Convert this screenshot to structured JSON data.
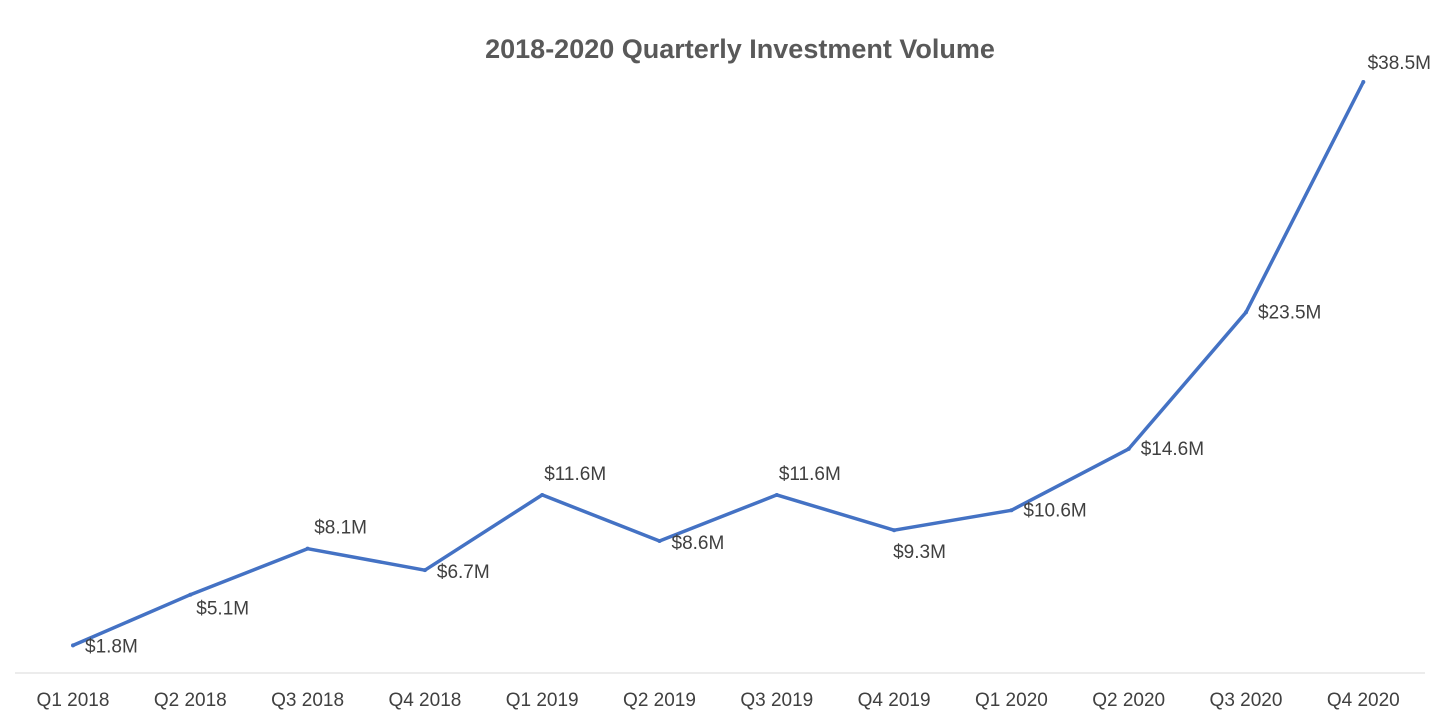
{
  "colors": {
    "series_line": "#4472C4",
    "axis_line": "#D9D9D9",
    "title_text": "#595959",
    "label_text": "#404040",
    "background": "#FFFFFF"
  },
  "chart_data": {
    "type": "line",
    "title": "2018-2020 Quarterly Investment Volume",
    "xlabel": "",
    "ylabel": "",
    "categories": [
      "Q1 2018",
      "Q2 2018",
      "Q3 2018",
      "Q4 2018",
      "Q1 2019",
      "Q2 2019",
      "Q3 2019",
      "Q4 2019",
      "Q1 2020",
      "Q2 2020",
      "Q3 2020",
      "Q4 2020"
    ],
    "series": [
      {
        "values": [
          1.8,
          5.1,
          8.1,
          6.7,
          11.6,
          8.6,
          11.6,
          9.3,
          10.6,
          14.6,
          23.5,
          38.5
        ],
        "data_labels": [
          "$1.8M",
          "$5.1M",
          "$8.1M",
          "$6.7M",
          "$11.6M",
          "$8.6M",
          "$11.6M",
          "$9.3M",
          "$10.6M",
          "$14.6M",
          "$23.5M",
          "$38.5M"
        ]
      }
    ],
    "ylim": [
      0,
      40
    ],
    "y_axis_visible": false,
    "grid": false,
    "legend": "none"
  }
}
